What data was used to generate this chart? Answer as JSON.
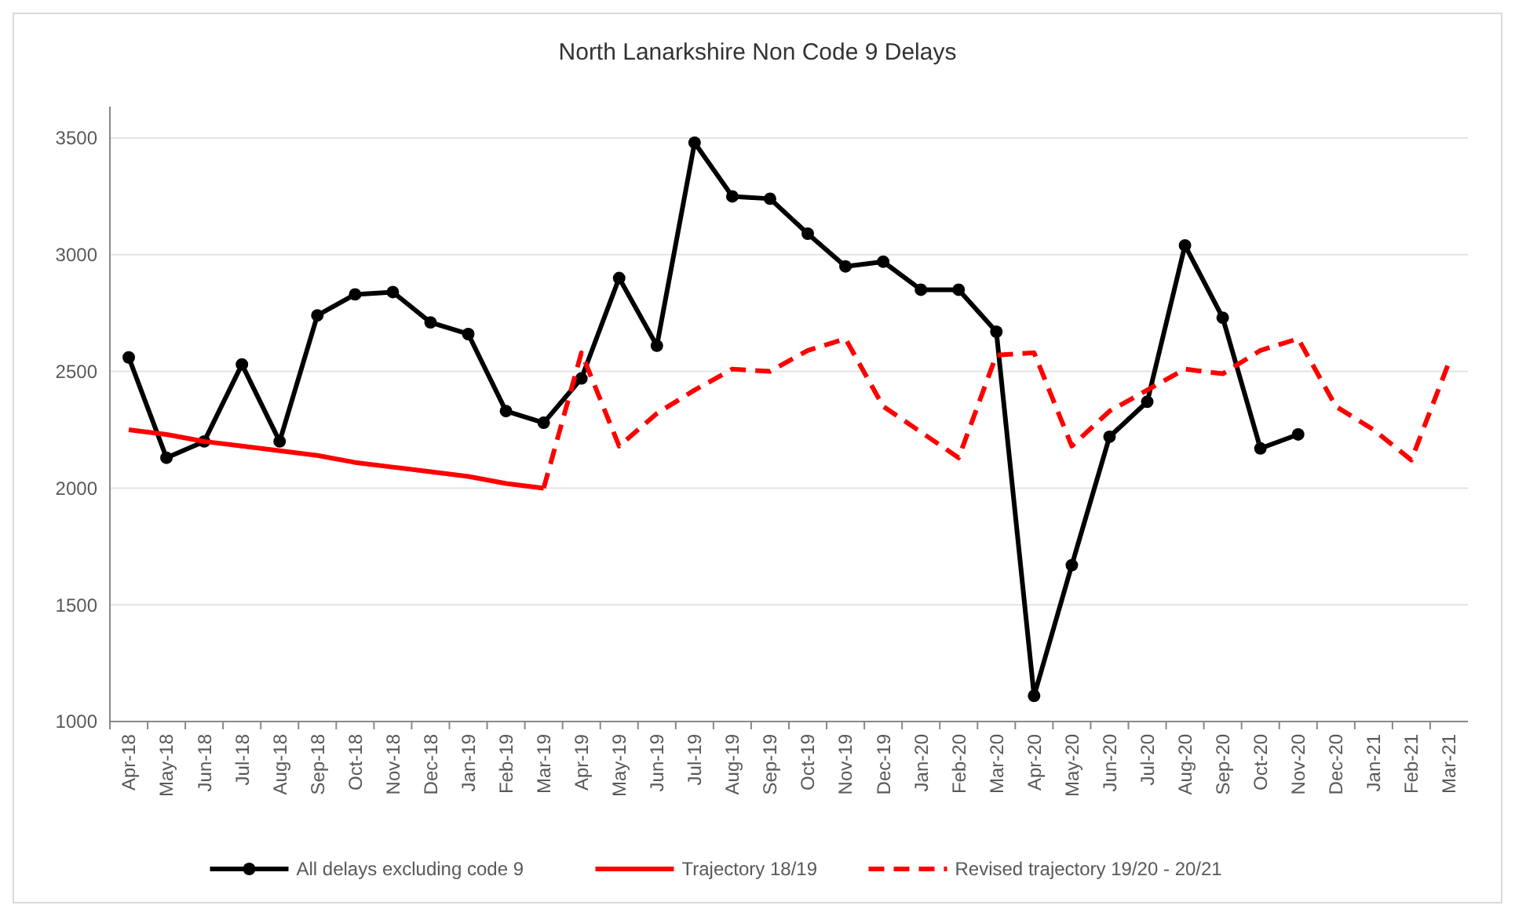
{
  "chart_data": {
    "type": "line",
    "title": "North Lanarkshire Non Code 9 Delays",
    "categories": [
      "Apr-18",
      "May-18",
      "Jun-18",
      "Jul-18",
      "Aug-18",
      "Sep-18",
      "Oct-18",
      "Nov-18",
      "Dec-18",
      "Jan-19",
      "Feb-19",
      "Mar-19",
      "Apr-19",
      "May-19",
      "Jun-19",
      "Jul-19",
      "Aug-19",
      "Sep-19",
      "Oct-19",
      "Nov-19",
      "Dec-19",
      "Jan-20",
      "Feb-20",
      "Mar-20",
      "Apr-20",
      "May-20",
      "Jun-20",
      "Jul-20",
      "Aug-20",
      "Sep-20",
      "Oct-20",
      "Nov-20",
      "Dec-20",
      "Jan-21",
      "Feb-21",
      "Mar-21"
    ],
    "series": [
      {
        "name": "All delays excluding code 9",
        "color": "#000000",
        "marker": "circle",
        "line_style": "solid",
        "values": [
          2560,
          2130,
          2200,
          2530,
          2200,
          2740,
          2830,
          2840,
          2710,
          2660,
          2330,
          2280,
          2470,
          2900,
          2610,
          3480,
          3250,
          3240,
          3090,
          2950,
          2970,
          2850,
          2850,
          2670,
          1110,
          1670,
          2220,
          2370,
          3040,
          2730,
          2170,
          2230,
          null,
          null,
          null,
          null
        ]
      },
      {
        "name": "Trajectory 18/19",
        "color": "#ff0000",
        "marker": "none",
        "line_style": "solid",
        "values": [
          2250,
          2230,
          2200,
          2180,
          2160,
          2140,
          2110,
          2090,
          2070,
          2050,
          2020,
          2000,
          null,
          null,
          null,
          null,
          null,
          null,
          null,
          null,
          null,
          null,
          null,
          null,
          null,
          null,
          null,
          null,
          null,
          null,
          null,
          null,
          null,
          null,
          null,
          null
        ]
      },
      {
        "name": "Revised trajectory 19/20 - 20/21",
        "color": "#ff0000",
        "marker": "none",
        "line_style": "dashed",
        "values": [
          null,
          null,
          null,
          null,
          null,
          null,
          null,
          null,
          null,
          null,
          null,
          2000,
          2580,
          2180,
          2320,
          2420,
          2510,
          2500,
          2590,
          2640,
          2350,
          2240,
          2130,
          2570,
          2580,
          2180,
          2330,
          2420,
          2510,
          2490,
          2590,
          2640,
          2350,
          2250,
          2120,
          2540
        ]
      }
    ],
    "ylim": [
      1000,
      3500
    ],
    "yticks": [
      1000,
      1500,
      2000,
      2500,
      3000,
      3500
    ],
    "grid": "y",
    "legend": "bottom"
  }
}
